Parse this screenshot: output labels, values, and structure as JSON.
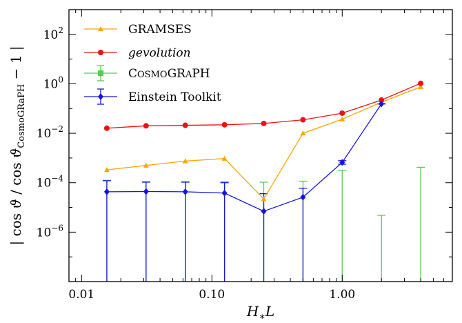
{
  "chart_data": {
    "type": "line",
    "xlabel": "H∗L",
    "ylabel": "| cos ϑ / cos ϑCosmoGRaPH − 1 |",
    "xscale": "log",
    "yscale": "log",
    "xlim": [
      0.008,
      7
    ],
    "ylim": [
      1e-08,
      1000.0
    ],
    "x_ticks": [
      {
        "value": 0.01,
        "label": "0.01"
      },
      {
        "value": 0.1,
        "label": "0.10"
      },
      {
        "value": 1,
        "label": "1.00"
      }
    ],
    "y_ticks": [
      {
        "value": 1e-06,
        "mant": "10",
        "exp": "−6"
      },
      {
        "value": 0.0001,
        "mant": "10",
        "exp": "−4"
      },
      {
        "value": 0.01,
        "mant": "10",
        "exp": "−2"
      },
      {
        "value": 1,
        "mant": "10",
        "exp": "0"
      },
      {
        "value": 100,
        "mant": "10",
        "exp": "2"
      }
    ],
    "legend_position": "top-left",
    "series": [
      {
        "name": "GRAMSES",
        "color": "#ffa500",
        "marker": "triangle",
        "label_style": "normal",
        "x": [
          0.015625,
          0.03125,
          0.0625,
          0.125,
          0.25,
          0.5,
          1.0,
          2.0,
          4.0
        ],
        "y": [
          0.00033,
          0.0005,
          0.00075,
          0.00095,
          2.2e-05,
          0.01,
          0.037,
          0.18,
          0.75
        ]
      },
      {
        "name": "gevolution",
        "color": "#ee1111",
        "marker": "circle",
        "label_style": "italic",
        "x": [
          0.015625,
          0.03125,
          0.0625,
          0.125,
          0.25,
          0.5,
          1.0,
          2.0,
          4.0
        ],
        "y": [
          0.016,
          0.02,
          0.021,
          0.022,
          0.025,
          0.035,
          0.065,
          0.22,
          1.05
        ]
      },
      {
        "name": "CosmoGRaPH",
        "color": "#55cc55",
        "marker": "square",
        "label_style": "smallcaps",
        "x": [
          0.015625,
          0.03125,
          0.0625,
          0.125,
          0.25,
          0.5,
          1.0,
          2.0,
          4.0
        ],
        "y": [
          1e-08,
          1e-08,
          1e-08,
          1e-08,
          1e-08,
          1e-08,
          1e-08,
          1e-08,
          1e-08
        ],
        "err_upper": [
          0.000125,
          0.00011,
          0.00011,
          0.00011,
          0.000105,
          0.000115,
          0.00032,
          4.8e-06,
          0.00042
        ]
      },
      {
        "name": "Einstein Toolkit",
        "color": "#1515dd",
        "marker": "diamond",
        "label_style": "normal",
        "x": [
          0.015625,
          0.03125,
          0.0625,
          0.125,
          0.25,
          0.5,
          1.0,
          2.0
        ],
        "y": [
          4.3e-05,
          4.4e-05,
          4.3e-05,
          3.8e-05,
          7e-06,
          2.6e-05,
          0.00066,
          0.155
        ],
        "err_upper": [
          0.00012,
          0.000105,
          0.000105,
          0.0001,
          3.6e-05,
          6e-05,
          0.00078,
          0.158
        ],
        "err_lower": [
          1e-08,
          1e-08,
          1e-08,
          1e-08,
          1e-08,
          1e-08,
          0.00056,
          0.152
        ]
      }
    ]
  }
}
